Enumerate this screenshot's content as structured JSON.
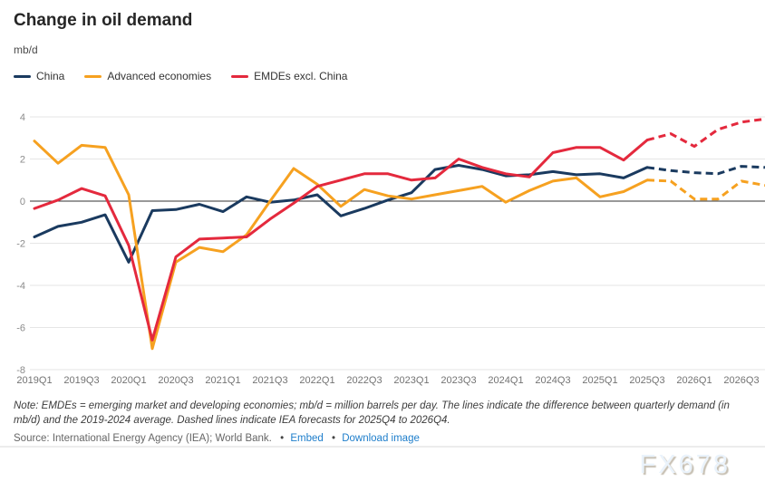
{
  "header": {
    "title": "Change in oil demand",
    "unit_label": "mb/d"
  },
  "chart_data": {
    "type": "line",
    "x_categories": [
      "2019Q1",
      "2019Q2",
      "2019Q3",
      "2019Q4",
      "2020Q1",
      "2020Q2",
      "2020Q3",
      "2020Q4",
      "2021Q1",
      "2021Q2",
      "2021Q3",
      "2021Q4",
      "2022Q1",
      "2022Q2",
      "2022Q3",
      "2022Q4",
      "2023Q1",
      "2023Q2",
      "2023Q3",
      "2023Q4",
      "2024Q1",
      "2024Q2",
      "2024Q3",
      "2024Q4",
      "2025Q1",
      "2025Q2",
      "2025Q3",
      "2025Q4",
      "2026Q1",
      "2026Q2",
      "2026Q3",
      "2026Q4"
    ],
    "x_tick_every": 2,
    "y_ticks": [
      4,
      2,
      0,
      -2,
      -4,
      -6,
      -8
    ],
    "ylim": [
      -8,
      4.4
    ],
    "grid": true,
    "legend_position": "top-left",
    "forecast_start_index": 27,
    "forecast_label": "IEA forecasts for 2025Q4 to 2026Q4 (dashed)",
    "series": [
      {
        "name": "China",
        "color": "#1a3a5f",
        "values": [
          -1.7,
          -1.2,
          -1.0,
          -0.65,
          -2.9,
          -0.45,
          -0.4,
          -0.15,
          -0.5,
          0.2,
          -0.05,
          0.05,
          0.3,
          -0.7,
          -0.35,
          0.05,
          0.4,
          1.5,
          1.7,
          1.5,
          1.2,
          1.25,
          1.4,
          1.25,
          1.3,
          1.1,
          1.6,
          1.45,
          1.35,
          1.3,
          1.65,
          1.6
        ]
      },
      {
        "name": "Advanced economies",
        "color": "#f6a120",
        "values": [
          2.85,
          1.8,
          2.65,
          2.55,
          0.3,
          -7.0,
          -2.9,
          -2.2,
          -2.4,
          -1.6,
          0.0,
          1.55,
          0.8,
          -0.25,
          0.55,
          0.25,
          0.1,
          0.3,
          0.5,
          0.7,
          -0.05,
          0.5,
          0.95,
          1.1,
          0.2,
          0.45,
          1.0,
          0.95,
          0.1,
          0.1,
          0.95,
          0.75
        ]
      },
      {
        "name": "EMDEs excl. China",
        "color": "#e4293d",
        "values": [
          -0.35,
          0.05,
          0.6,
          0.25,
          -2.1,
          -6.6,
          -2.65,
          -1.8,
          -1.75,
          -1.7,
          -0.85,
          -0.1,
          0.7,
          1.0,
          1.3,
          1.3,
          1.0,
          1.1,
          2.0,
          1.6,
          1.3,
          1.15,
          2.3,
          2.55,
          2.55,
          1.95,
          2.9,
          3.2,
          2.6,
          3.4,
          3.75,
          3.9
        ]
      }
    ]
  },
  "footer": {
    "note": "Note: EMDEs = emerging market and developing economies; mb/d = million barrels per day. The lines indicate the difference between quarterly demand (in mb/d) and the 2019-2024 average. Dashed lines indicate IEA forecasts for 2025Q4 to 2026Q4.",
    "source_prefix": "Source: International Energy Agency (IEA); World Bank.",
    "separator": "•",
    "links": [
      {
        "label": "Embed"
      },
      {
        "label": "Download image"
      }
    ],
    "watermark": "FX678"
  }
}
